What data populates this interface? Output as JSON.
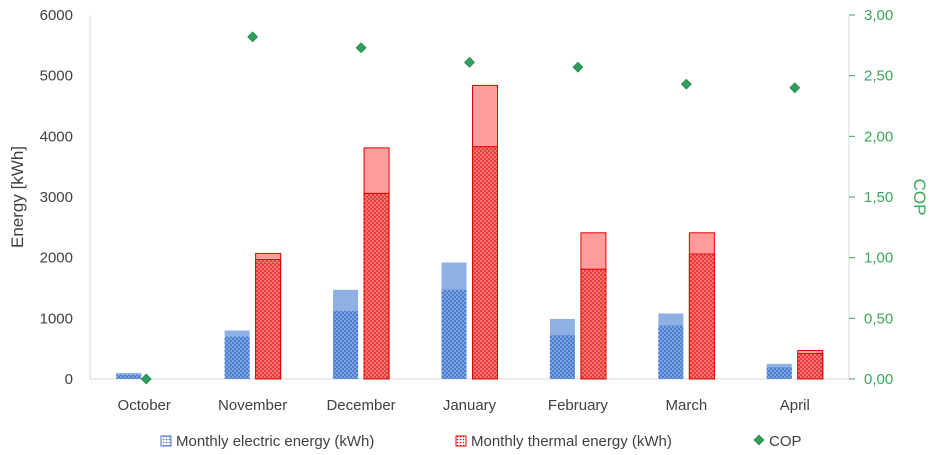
{
  "chart_data": {
    "type": "bar",
    "categories": [
      "October",
      "November",
      "December",
      "January",
      "February",
      "March",
      "April"
    ],
    "series": [
      {
        "name": "Monthly electric energy (kWh)",
        "axis": "left",
        "color": "#4472c4",
        "values_lower": [
          70,
          700,
          1120,
          1470,
          720,
          880,
          190
        ],
        "values_total": [
          100,
          800,
          1470,
          1920,
          990,
          1080,
          250
        ]
      },
      {
        "name": "Monthly thermal energy (kWh)",
        "axis": "left",
        "color": "#ff0000",
        "values_lower": [
          0,
          1970,
          3060,
          3830,
          1810,
          2060,
          420
        ],
        "values_total": [
          0,
          2070,
          3810,
          4840,
          2410,
          2410,
          470
        ]
      },
      {
        "name": "COP",
        "axis": "right",
        "type": "scatter",
        "color": "#2e9e5b",
        "values": [
          0.0,
          2.82,
          2.73,
          2.61,
          2.57,
          2.43,
          2.4
        ]
      }
    ],
    "ylabel": "Energy [kWh]",
    "ylabel_right": "COP",
    "ylim": [
      0,
      6000
    ],
    "ylim_right": [
      0,
      3
    ],
    "yticks": [
      "0",
      "1000",
      "2000",
      "3000",
      "4000",
      "5000",
      "6000"
    ],
    "yticks_right": [
      "0,00",
      "0,50",
      "1,00",
      "1,50",
      "2,00",
      "2,50",
      "3,00"
    ],
    "grid": false,
    "legend": "bottom"
  }
}
